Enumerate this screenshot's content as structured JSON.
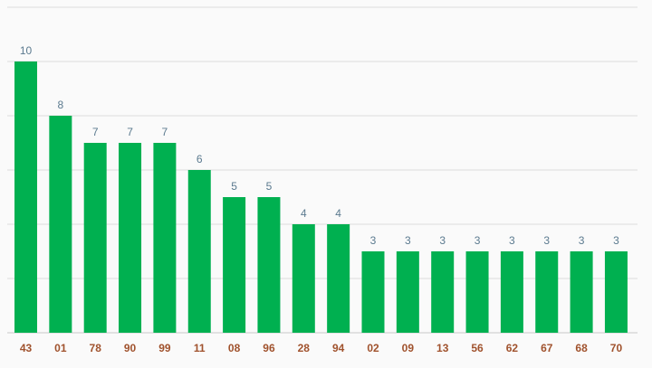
{
  "colors": {
    "bar": "#00b050",
    "value_label": "#5b7a8f",
    "tick_label": "#a0522d",
    "gridline": "#dcdcdc",
    "background": "#fafafa"
  },
  "chart_data": {
    "type": "bar",
    "title": "",
    "xlabel": "",
    "ylabel": "",
    "ylim": [
      0,
      12
    ],
    "grid": true,
    "legend": "none",
    "categories": [
      "43",
      "01",
      "78",
      "90",
      "99",
      "11",
      "08",
      "96",
      "28",
      "94",
      "02",
      "09",
      "13",
      "56",
      "62",
      "67",
      "68",
      "70"
    ],
    "values": [
      10,
      8,
      7,
      7,
      7,
      6,
      5,
      5,
      4,
      4,
      3,
      3,
      3,
      3,
      3,
      3,
      3,
      3
    ]
  }
}
